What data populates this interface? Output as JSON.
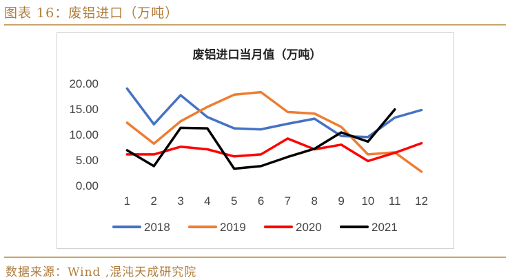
{
  "page": {
    "figure_title": "图表 16：废铝进口（万吨）",
    "source": "数据来源：Wind ,混沌天成研究院"
  },
  "chart_data": {
    "type": "line",
    "title": "废铝进口当月值（万吨）",
    "categories": [
      "1",
      "2",
      "3",
      "4",
      "5",
      "6",
      "7",
      "8",
      "9",
      "10",
      "11",
      "12"
    ],
    "ylim": [
      0,
      20
    ],
    "yticks": [
      "0.00",
      "5.00",
      "10.00",
      "15.00",
      "20.00"
    ],
    "legend_position": "bottom",
    "grid": false,
    "series": [
      {
        "name": "2018",
        "color": "#4472c4",
        "values": [
          19.0,
          12.0,
          17.7,
          13.4,
          11.2,
          11.0,
          12.1,
          13.1,
          9.7,
          9.5,
          13.3,
          14.8
        ]
      },
      {
        "name": "2019",
        "color": "#ed7d31",
        "values": [
          12.3,
          8.2,
          12.6,
          15.4,
          17.8,
          18.3,
          14.4,
          14.1,
          11.5,
          6.1,
          6.5,
          2.7
        ]
      },
      {
        "name": "2020",
        "color": "#ff0000",
        "values": [
          6.1,
          6.1,
          7.6,
          7.1,
          5.7,
          6.1,
          9.2,
          7.1,
          8.0,
          4.8,
          6.4,
          8.3
        ]
      },
      {
        "name": "2021",
        "color": "#000000",
        "values": [
          6.9,
          3.8,
          11.3,
          11.2,
          3.3,
          3.8,
          5.6,
          7.2,
          10.4,
          8.6,
          14.9,
          null
        ]
      }
    ]
  }
}
